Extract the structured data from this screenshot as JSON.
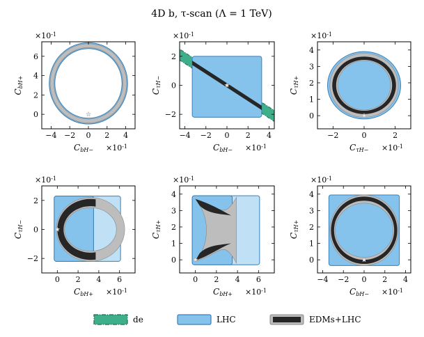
{
  "title": "4D b, τ-scan        (Λ = 1 TeV)",
  "colors": {
    "de_fill": "#3fae8a",
    "de_edge": "#1f6b52",
    "lhc_fill": "#85c3ec",
    "lhc_edge": "#3a7fb5",
    "edm_grey": "#bdbdbd",
    "edm_dark": "#262626",
    "star": "#e8e8e8"
  },
  "legend": [
    {
      "key": "de",
      "label": "d_e"
    },
    {
      "key": "lhc",
      "label": "LHC"
    },
    {
      "key": "edm",
      "label": "EDMs+LHC"
    }
  ],
  "chart_data": [
    {
      "type": "contour",
      "id": "p11",
      "xlabel": "C_{bH−}",
      "ylabel": "C_{bH+}",
      "x_mult": "×10^{-1}",
      "y_mult": "×10^{-1}",
      "xlim": [
        -5,
        5
      ],
      "ylim": [
        -1.5,
        7.5
      ],
      "xticks": [
        -4,
        -2,
        0,
        2,
        4
      ],
      "yticks": [
        0,
        2,
        4,
        6
      ],
      "regions": [
        {
          "kind": "ring",
          "cx": 0,
          "cy": 3.2,
          "r1": 4.2,
          "r2": 3.6,
          "layer": "lhc"
        },
        {
          "kind": "ring",
          "cx": 0,
          "cy": 3.2,
          "r1": 4.1,
          "r2": 3.7,
          "layer": "edm_grey"
        }
      ],
      "star": [
        0,
        0
      ]
    },
    {
      "type": "contour",
      "id": "p12",
      "xlabel": "C_{bH−}",
      "ylabel": "C_{τH−}",
      "x_mult": "×10^{-1}",
      "y_mult": "×10^{-1}",
      "xlim": [
        -4.5,
        4.5
      ],
      "ylim": [
        -3,
        3
      ],
      "xticks": [
        -4,
        -2,
        0,
        2,
        4
      ],
      "yticks": [
        -2,
        0,
        2
      ],
      "regions": [
        {
          "kind": "band",
          "slope": -0.47,
          "halfwidth": 0.38,
          "layer": "de"
        },
        {
          "kind": "rect",
          "x0": -3.3,
          "x1": 3.3,
          "y0": -2.2,
          "y1": 2.0,
          "layer": "lhc"
        },
        {
          "kind": "band_clip",
          "slope": -0.47,
          "halfwidth": 0.15,
          "x0": -3.3,
          "x1": 3.3,
          "layer": "edm_dark"
        }
      ],
      "star": [
        0,
        0
      ]
    },
    {
      "type": "contour",
      "id": "p13",
      "xlabel": "C_{τH−}",
      "ylabel": "C_{τH+}",
      "x_mult": "×10^{-1}",
      "y_mult": "×10^{-1}",
      "xlim": [
        -3,
        3
      ],
      "ylim": [
        -0.8,
        4.5
      ],
      "xticks": [
        -2,
        0,
        2
      ],
      "yticks": [
        0,
        1,
        2,
        3,
        4
      ],
      "regions": [
        {
          "kind": "ellipse",
          "cx": 0,
          "cy": 1.85,
          "rx": 2.35,
          "ry": 2.05,
          "layer": "lhc"
        },
        {
          "kind": "ring_e",
          "cx": 0,
          "cy": 1.85,
          "rx1": 2.2,
          "ry1": 1.95,
          "rx2": 1.7,
          "ry2": 1.5,
          "layer": "edm_grey"
        },
        {
          "kind": "ring_e",
          "cx": 0,
          "cy": 1.85,
          "rx1": 2.05,
          "ry1": 1.75,
          "rx2": 1.8,
          "ry2": 1.55,
          "layer": "edm_dark"
        }
      ],
      "star": [
        0,
        0
      ]
    },
    {
      "type": "contour",
      "id": "p21",
      "xlabel": "C_{bH+}",
      "ylabel": "C_{τH−}",
      "x_mult": "×10^{-1}",
      "y_mult": "×10^{-1}",
      "xlim": [
        -1.5,
        7.5
      ],
      "ylim": [
        -3,
        3
      ],
      "xticks": [
        0,
        2,
        4,
        6
      ],
      "yticks": [
        -2,
        0,
        2
      ],
      "regions": [
        {
          "kind": "rect",
          "x0": -0.3,
          "x1": 6.1,
          "y0": -2.2,
          "y1": 2.3,
          "layer": "lhc_light"
        },
        {
          "kind": "rect",
          "x0": -0.3,
          "x1": 3.5,
          "y0": -2.2,
          "y1": 2.3,
          "layer": "lhc"
        },
        {
          "kind": "ring_e",
          "cx": 3.2,
          "cy": 0,
          "rx1": 3.3,
          "ry1": 2.2,
          "rx2": 2.5,
          "ry2": 1.5,
          "layer": "edm_grey"
        },
        {
          "kind": "ring_e_clip",
          "cx": 3.2,
          "cy": 0,
          "rx1": 3.2,
          "ry1": 2.1,
          "rx2": 2.6,
          "ry2": 1.6,
          "xmax": 3.7,
          "layer": "edm_dark"
        }
      ],
      "star": [
        0,
        0
      ]
    },
    {
      "type": "contour",
      "id": "p22",
      "xlabel": "C_{bH+}",
      "ylabel": "C_{τH+}",
      "x_mult": "×10^{-1}",
      "y_mult": "×10^{-1}",
      "xlim": [
        -1.5,
        7.5
      ],
      "ylim": [
        -0.8,
        4.5
      ],
      "xticks": [
        0,
        2,
        4,
        6
      ],
      "yticks": [
        0,
        1,
        2,
        3,
        4
      ],
      "regions": [
        {
          "kind": "rect",
          "x0": -0.3,
          "x1": 6.1,
          "y0": -0.3,
          "y1": 3.9,
          "layer": "lhc_light"
        },
        {
          "kind": "rect",
          "x0": -0.3,
          "x1": 3.5,
          "y0": -0.3,
          "y1": 3.9,
          "layer": "lhc"
        },
        {
          "kind": "hourglass",
          "layer": "edm_grey"
        },
        {
          "kind": "arcs",
          "layer": "edm_dark"
        }
      ],
      "star": [
        0,
        0
      ]
    },
    {
      "type": "contour",
      "id": "p23",
      "xlabel": "C_{bH−}",
      "ylabel": "C_{τH+}",
      "x_mult": "×10^{-1}",
      "y_mult": "×10^{-1}",
      "xlim": [
        -4.5,
        4.5
      ],
      "ylim": [
        -0.8,
        4.5
      ],
      "xticks": [
        -4,
        -2,
        0,
        2,
        4
      ],
      "yticks": [
        0,
        1,
        2,
        3,
        4
      ],
      "regions": [
        {
          "kind": "rect",
          "x0": -3.4,
          "x1": 3.4,
          "y0": -0.35,
          "y1": 3.95,
          "layer": "lhc"
        },
        {
          "kind": "ring_e",
          "cx": 0,
          "cy": 1.8,
          "rx1": 3.3,
          "ry1": 2.15,
          "rx2": 2.8,
          "ry2": 1.65,
          "layer": "edm_grey"
        },
        {
          "kind": "ring_e",
          "cx": 0,
          "cy": 1.8,
          "rx1": 3.2,
          "ry1": 2.05,
          "rx2": 2.9,
          "ry2": 1.8,
          "layer": "edm_dark"
        }
      ],
      "star": [
        0,
        0
      ]
    }
  ]
}
